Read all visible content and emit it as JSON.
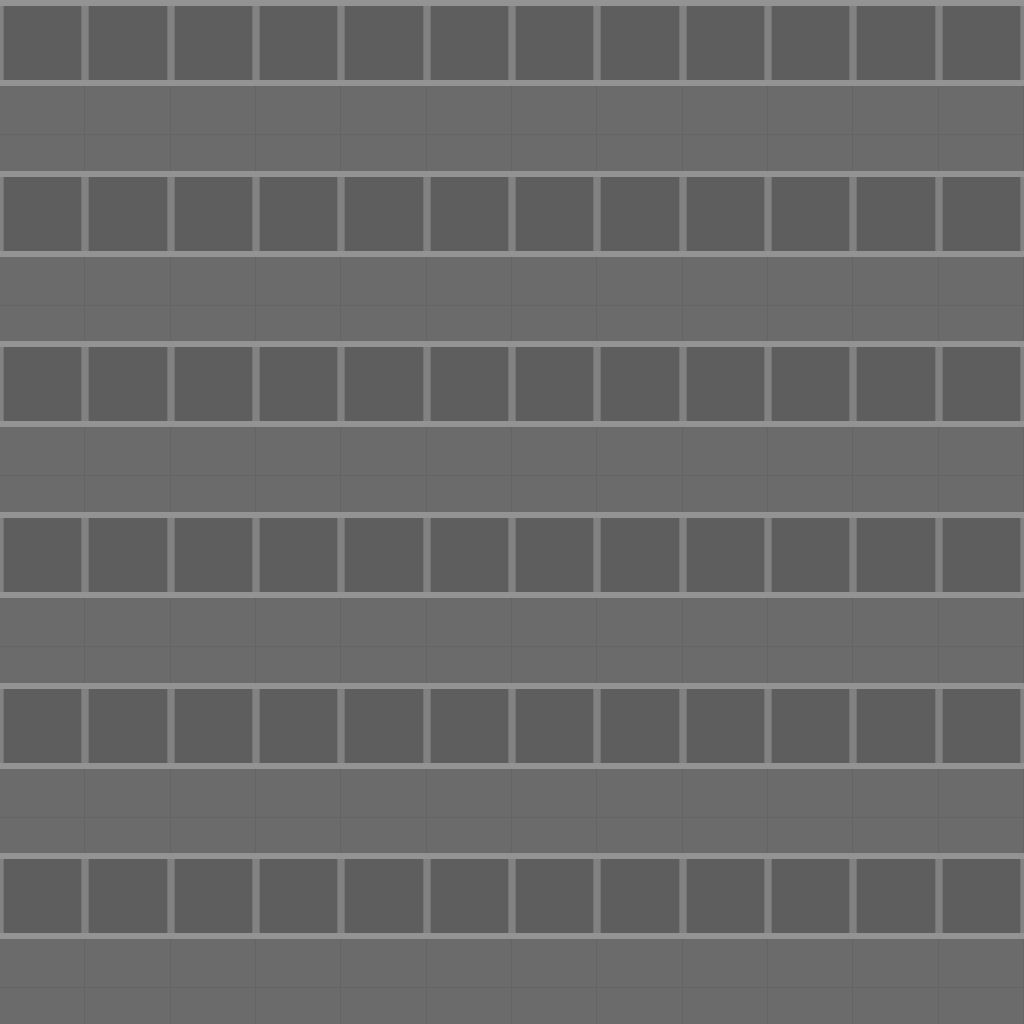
{
  "texture": {
    "bands": 6,
    "panels_per_band": 12,
    "colors": {
      "spandrel": "#6b6b6b",
      "window_panel": "#5e5e5e",
      "mullion": "#828282",
      "floor_strip": "#939393",
      "seam": "#646464"
    }
  }
}
